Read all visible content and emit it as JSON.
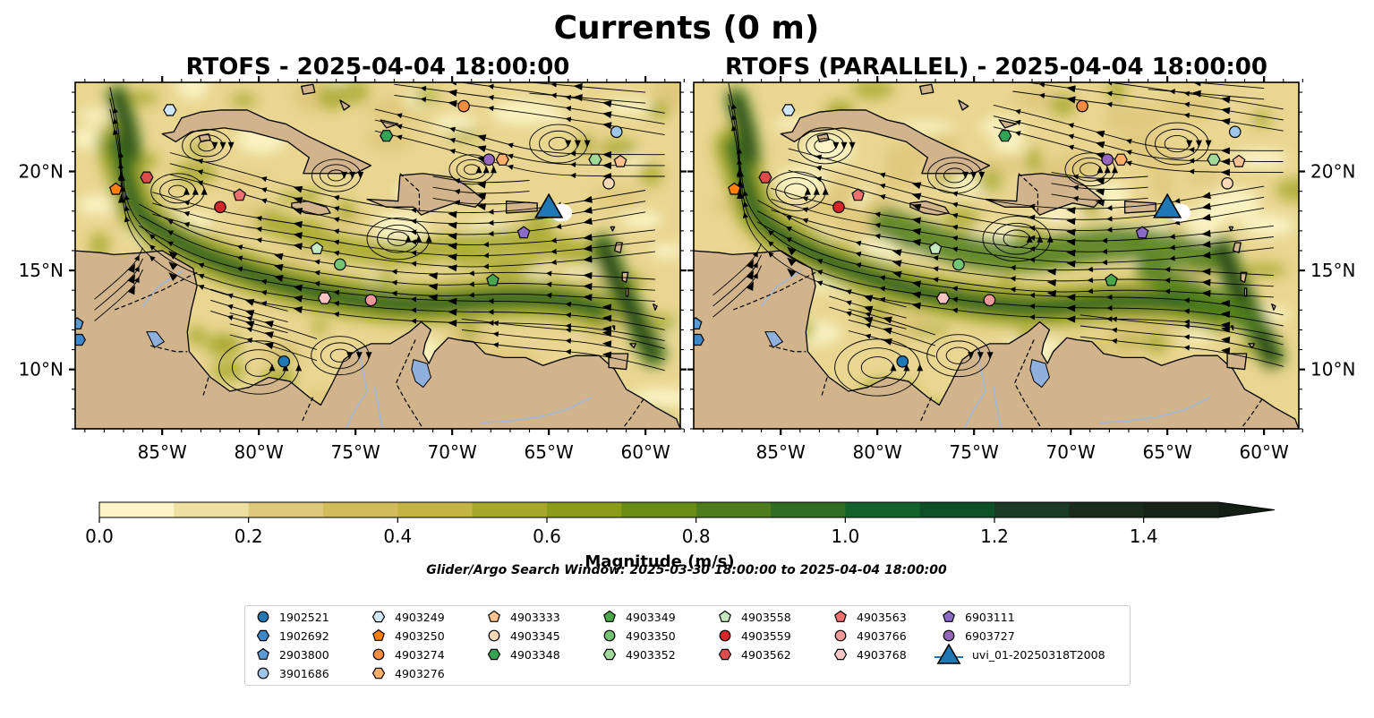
{
  "figure": {
    "title": "Currents (0 m)",
    "search_window": "Glider/Argo Search Window: 2025-03-30 18:00:00 to 2025-04-04 18:00:00"
  },
  "panels": [
    {
      "id": "rtofs",
      "title": "RTOFS - 2025-04-04 18:00:00"
    },
    {
      "id": "rtofs-parallel",
      "title": "RTOFS (PARALLEL) - 2025-04-04 18:00:00"
    }
  ],
  "map": {
    "extent": {
      "lon_min": -89.5,
      "lon_max": -58.2,
      "lat_min": 7.0,
      "lat_max": 24.5
    },
    "lon_ticks": [
      "85°W",
      "80°W",
      "75°W",
      "70°W",
      "65°W",
      "60°W"
    ],
    "lat_ticks": [
      "20°N",
      "15°N",
      "10°N"
    ],
    "land_color": "#d2b48c",
    "lake_color": "#8fb0dd",
    "river_color": "#a0b8d8"
  },
  "colorbar": {
    "label": "Magnitude (m/s)",
    "min": 0.0,
    "max": 1.5,
    "step": 0.1,
    "extend": "max",
    "ticks": [
      "0.0",
      "0.2",
      "0.4",
      "0.6",
      "0.8",
      "1.0",
      "1.2",
      "1.4"
    ],
    "colors": [
      "#fbf5c7",
      "#ede0a0",
      "#dec87a",
      "#d2bb59",
      "#c3b443",
      "#a5a82c",
      "#8a9c1a",
      "#6c8d15",
      "#4e7c1b",
      "#306e22",
      "#13622c",
      "#0f4f28",
      "#1a3a25",
      "#1b2c1c",
      "#182418"
    ],
    "extend_color": "#141f14"
  },
  "markers": [
    {
      "id": "1902521",
      "shape": "circle",
      "color": "#1f77b4",
      "lon": -78.7,
      "lat": 10.4
    },
    {
      "id": "1902692",
      "shape": "hexagon",
      "color": "#3c88c8",
      "lon": -89.3,
      "lat": 11.5
    },
    {
      "id": "2903800",
      "shape": "pentagon",
      "color": "#5a9bd5",
      "lon": -89.4,
      "lat": 12.3
    },
    {
      "id": "3901686",
      "shape": "circle",
      "color": "#9dc6ea",
      "lon": -61.5,
      "lat": 22.0
    },
    {
      "id": "4903249",
      "shape": "hexagon",
      "color": "#cfe6f9",
      "lon": -84.6,
      "lat": 23.1
    },
    {
      "id": "4903250",
      "shape": "pentagon",
      "color": "#ff7f0e",
      "lon": -87.4,
      "lat": 19.1
    },
    {
      "id": "4903274",
      "shape": "circle",
      "color": "#fd8d3c",
      "lon": -69.4,
      "lat": 23.3
    },
    {
      "id": "4903276",
      "shape": "hexagon",
      "color": "#fdae6b",
      "lon": -67.4,
      "lat": 20.6
    },
    {
      "id": "4903333",
      "shape": "pentagon",
      "color": "#fdc28f",
      "lon": -61.3,
      "lat": 20.5
    },
    {
      "id": "4903345",
      "shape": "circle",
      "color": "#fdd9b5",
      "lon": -61.9,
      "lat": 19.4
    },
    {
      "id": "4903348",
      "shape": "hexagon",
      "color": "#31a354",
      "lon": -73.4,
      "lat": 21.8
    },
    {
      "id": "4903349",
      "shape": "pentagon",
      "color": "#4aa84a",
      "lon": -67.9,
      "lat": 14.5
    },
    {
      "id": "4903350",
      "shape": "circle",
      "color": "#74c476",
      "lon": -75.8,
      "lat": 15.3
    },
    {
      "id": "4903352",
      "shape": "hexagon",
      "color": "#a1d99b",
      "lon": -62.6,
      "lat": 20.6
    },
    {
      "id": "4903558",
      "shape": "pentagon",
      "color": "#c7e9c0",
      "lon": -77.0,
      "lat": 16.1
    },
    {
      "id": "4903559",
      "shape": "circle",
      "color": "#d62728",
      "lon": -82.0,
      "lat": 18.2
    },
    {
      "id": "4903562",
      "shape": "hexagon",
      "color": "#de4b4b",
      "lon": -85.8,
      "lat": 19.7
    },
    {
      "id": "4903563",
      "shape": "pentagon",
      "color": "#f07070",
      "lon": -81.0,
      "lat": 18.8
    },
    {
      "id": "4903766",
      "shape": "circle",
      "color": "#f4999a",
      "lon": -74.2,
      "lat": 13.5
    },
    {
      "id": "4903768",
      "shape": "hexagon",
      "color": "#fbc5c6",
      "lon": -76.6,
      "lat": 13.6
    },
    {
      "id": "6903111",
      "shape": "pentagon",
      "color": "#8c6bc6",
      "lon": -66.3,
      "lat": 16.9
    },
    {
      "id": "6903727",
      "shape": "circle",
      "color": "#9467bd",
      "lon": -68.1,
      "lat": 20.6
    },
    {
      "id": "uvi_01-20250318T2008",
      "shape": "triangle",
      "color": "#1f77b4",
      "lon": -65.0,
      "lat": 18.1
    }
  ]
}
